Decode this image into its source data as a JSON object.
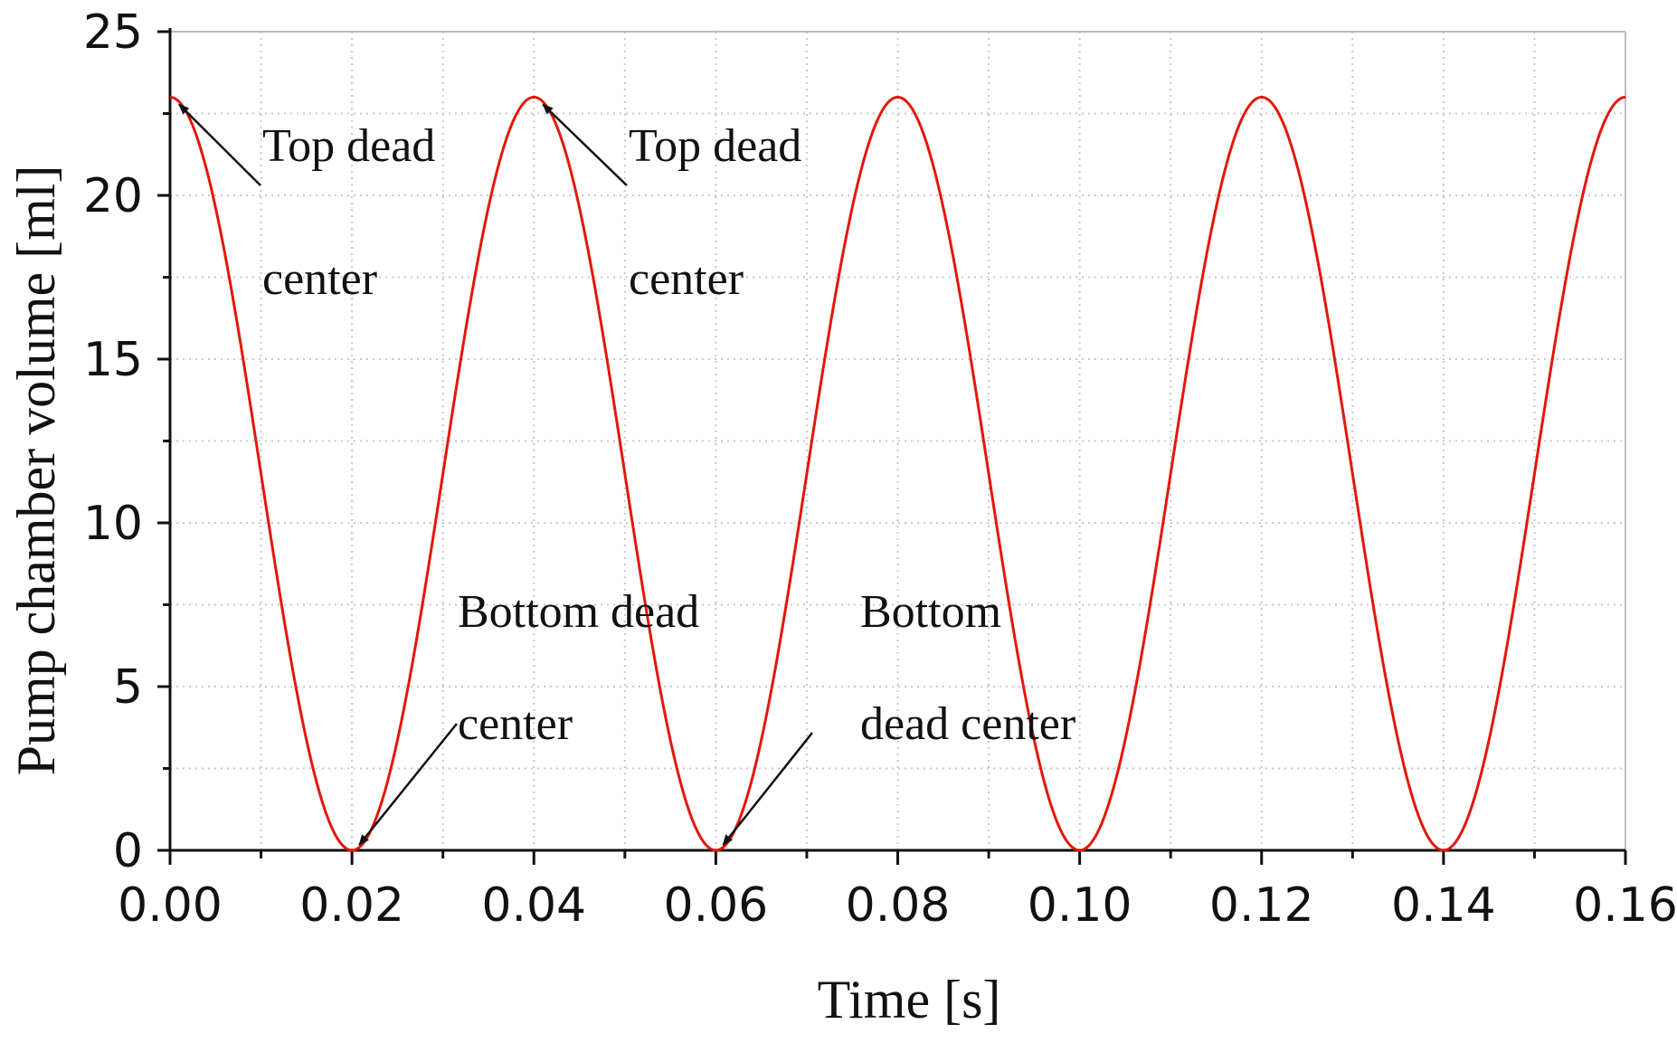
{
  "chart_data": {
    "type": "line",
    "xlabel": "Time [s]",
    "ylabel": "Pump chamber volume [ml]",
    "xlim": [
      0,
      0.16
    ],
    "ylim": [
      0,
      25
    ],
    "x_ticks": [
      "0.00",
      "0.02",
      "0.04",
      "0.06",
      "0.08",
      "0.10",
      "0.12",
      "0.14",
      "0.16"
    ],
    "y_ticks": [
      "0",
      "5",
      "10",
      "15",
      "20",
      "25"
    ],
    "grid": true,
    "series": [
      {
        "color": "#e3170a",
        "function": "V = 11.5 + 11.5*cos(2*pi*t/0.04)",
        "x": [
          0.0,
          0.02,
          0.04,
          0.06,
          0.08,
          0.1,
          0.12,
          0.14,
          0.16
        ],
        "y": [
          23.0,
          0.0,
          23.0,
          0.0,
          23.0,
          0.0,
          23.0,
          0.0,
          23.0
        ]
      }
    ],
    "annotations": [
      {
        "lines": [
          "Top dead",
          "center"
        ],
        "point": [
          0.0,
          23.0
        ]
      },
      {
        "lines": [
          "Top dead",
          "center"
        ],
        "point": [
          0.04,
          23.0
        ]
      },
      {
        "lines": [
          "Bottom dead",
          "center"
        ],
        "point": [
          0.02,
          0.0
        ]
      },
      {
        "lines": [
          "Bottom",
          "dead center"
        ],
        "point": [
          0.06,
          0.0
        ]
      }
    ]
  }
}
